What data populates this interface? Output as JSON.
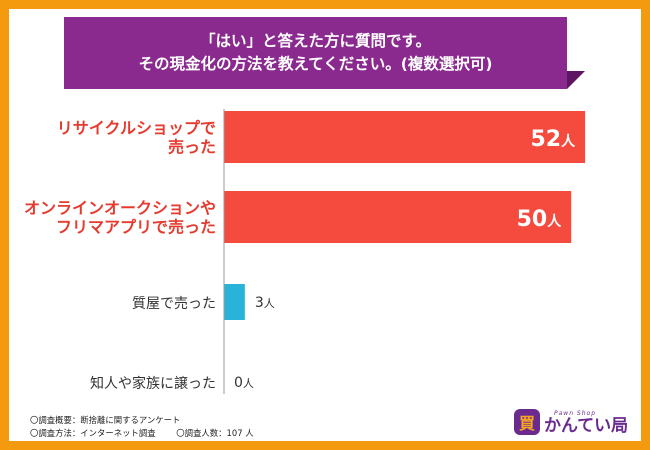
{
  "chart_data": {
    "type": "bar",
    "orientation": "horizontal",
    "title_lines": [
      "「はい」と答えた方に質問です。",
      "その現金化の方法を教えてください。(複数選択可)"
    ],
    "categories": [
      [
        "リサイクルショップで",
        "売った"
      ],
      [
        "オンラインオークションや",
        "フリマアプリで売った"
      ],
      [
        "質屋で売った"
      ],
      [
        "知人や家族に譲った"
      ]
    ],
    "values": [
      52,
      50,
      3,
      0
    ],
    "unit": "人",
    "xlim": [
      0,
      54
    ],
    "highlight_colors": [
      "#f44b3e",
      "#f44b3e",
      "#2ab3d8",
      "#2ab3d8"
    ],
    "label_colors": [
      "#e63a2e",
      "#e63a2e",
      "#333333",
      "#333333"
    ]
  },
  "footer": {
    "survey_summary": "〇調査概要：断捨離に関するアンケート",
    "survey_method": "〇調査方法：インターネット調査",
    "respondents": "〇調査人数：107 人"
  },
  "logo": {
    "mark": "買",
    "subtitle": "Pawn Shop",
    "name": "かんてい局"
  }
}
